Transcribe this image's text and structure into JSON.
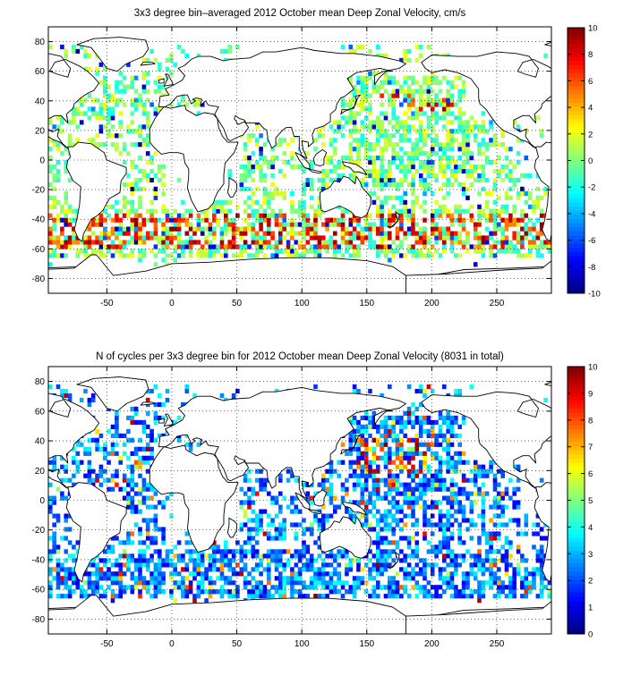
{
  "chart_data": [
    {
      "type": "heatmap",
      "title": "3x3 degree bin–averaged 2012 October mean Deep Zonal Velocity, cm/s",
      "xlim": [
        -95,
        292
      ],
      "ylim": [
        -90,
        90
      ],
      "xticks": [
        -50,
        0,
        50,
        100,
        150,
        200,
        250
      ],
      "yticks": [
        80,
        60,
        40,
        20,
        0,
        -20,
        -40,
        -60,
        -80
      ],
      "grid": true,
      "bin_size_deg": 3,
      "colorbar": {
        "min": -10,
        "max": 10,
        "ticks": [
          10,
          8,
          6,
          4,
          2,
          0,
          -2,
          -4,
          -6,
          -8,
          -10
        ],
        "colormap": "jet",
        "placement": "right"
      },
      "field_description": "mixed signs; strong positive (eastward) band around 40–60°S, mostly near-zero values elsewhere"
    },
    {
      "type": "heatmap",
      "title": "N of cycles per 3x3 degree bin for 2012 October mean Deep Zonal Velocity (8031 in total)",
      "xlim": [
        -95,
        292
      ],
      "ylim": [
        -90,
        90
      ],
      "xticks": [
        -50,
        0,
        50,
        100,
        150,
        200,
        250
      ],
      "yticks": [
        80,
        60,
        40,
        20,
        0,
        -20,
        -40,
        -60,
        -80
      ],
      "grid": true,
      "bin_size_deg": 3,
      "colorbar": {
        "min": 0,
        "max": 10,
        "ticks": [
          10,
          9,
          8,
          7,
          6,
          5,
          4,
          3,
          2,
          1,
          0
        ],
        "colormap": "jet",
        "placement": "right"
      },
      "field_description": "mostly 1–3 cycles per bin, higher counts (8–10) concentrated in the NW Pacific near 30–40°N"
    }
  ],
  "colors": {
    "axes": "#000000",
    "land_outline": "#000000",
    "grid": "#000000",
    "background": "#ffffff"
  }
}
